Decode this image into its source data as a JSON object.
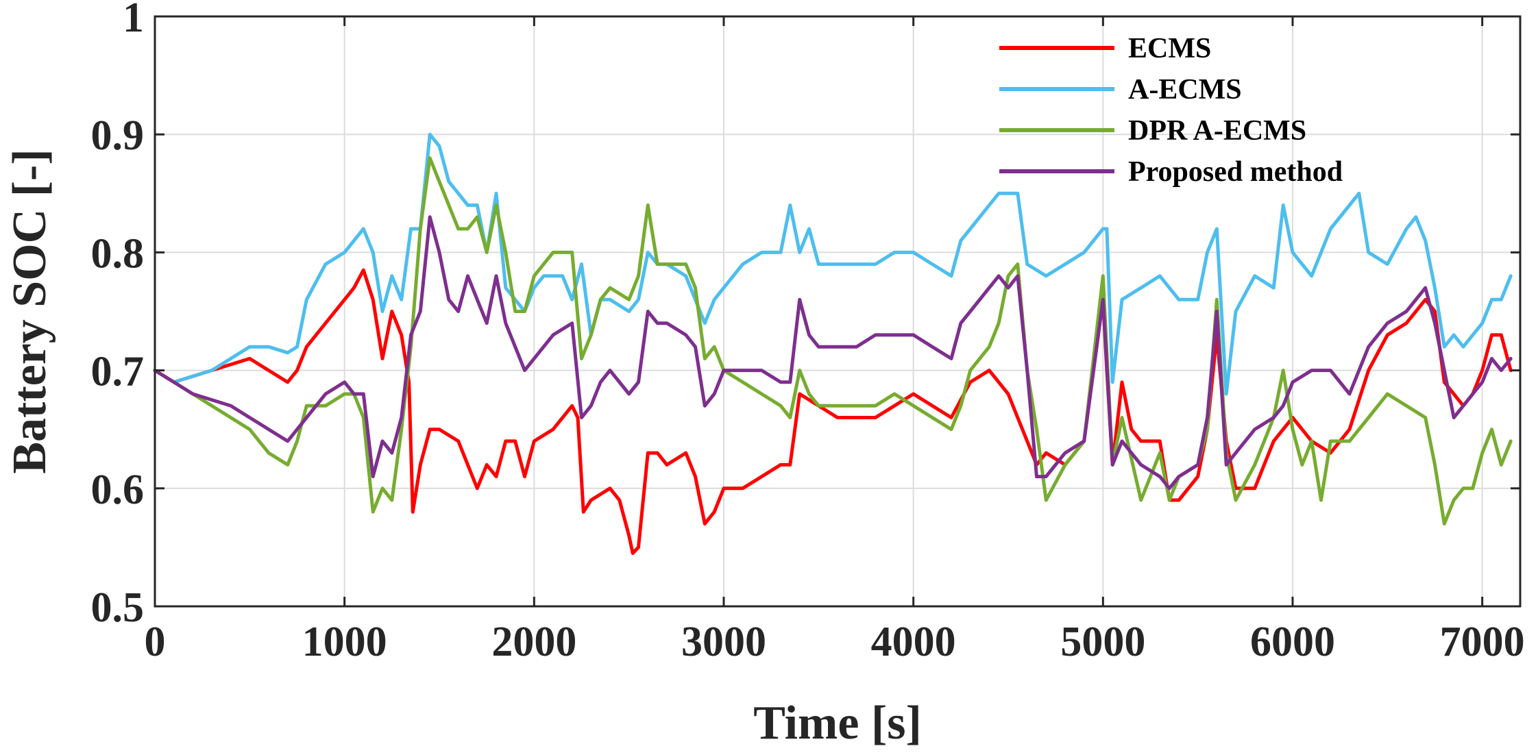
{
  "chart_data": {
    "type": "line",
    "title": "",
    "xlabel": "Time [s]",
    "ylabel": "Battery SOC [-]",
    "xlim": [
      0,
      7200
    ],
    "ylim": [
      0.5,
      1.0
    ],
    "xticks": [
      0,
      1000,
      2000,
      3000,
      4000,
      5000,
      6000,
      7000
    ],
    "xtick_labels": [
      "0",
      "1000",
      "2000",
      "3000",
      "4000",
      "5000",
      "6000",
      "7000"
    ],
    "yticks": [
      0.5,
      0.6,
      0.7,
      0.8,
      0.9,
      1.0
    ],
    "ytick_labels": [
      "0.5",
      "0.6",
      "0.7",
      "0.8",
      "0.9",
      "1"
    ],
    "grid": true,
    "legend_position": "top-right",
    "series": [
      {
        "name": "ECMS",
        "color": "#ff0000",
        "x": [
          0,
          100,
          300,
          500,
          600,
          700,
          750,
          800,
          900,
          1000,
          1050,
          1100,
          1150,
          1200,
          1250,
          1300,
          1340,
          1360,
          1400,
          1450,
          1500,
          1600,
          1650,
          1700,
          1750,
          1800,
          1850,
          1900,
          1950,
          2000,
          2100,
          2200,
          2230,
          2260,
          2300,
          2400,
          2450,
          2500,
          2520,
          2550,
          2600,
          2650,
          2700,
          2800,
          2850,
          2900,
          2950,
          3000,
          3100,
          3200,
          3300,
          3350,
          3400,
          3500,
          3600,
          3700,
          3800,
          3900,
          4000,
          4100,
          4200,
          4300,
          4400,
          4500,
          4550,
          4600,
          4650,
          4700,
          4800,
          4900,
          5000,
          5020,
          5050,
          5100,
          5150,
          5200,
          5300,
          5350,
          5400,
          5500,
          5550,
          5600,
          5650,
          5700,
          5800,
          5900,
          6000,
          6100,
          6200,
          6300,
          6400,
          6500,
          6600,
          6700,
          6750,
          6800,
          6900,
          6950,
          7000,
          7050,
          7100,
          7150
        ],
        "y": [
          0.7,
          0.69,
          0.7,
          0.71,
          0.7,
          0.69,
          0.7,
          0.72,
          0.74,
          0.76,
          0.77,
          0.785,
          0.76,
          0.71,
          0.75,
          0.73,
          0.69,
          0.58,
          0.62,
          0.65,
          0.65,
          0.64,
          0.62,
          0.6,
          0.62,
          0.61,
          0.64,
          0.64,
          0.61,
          0.64,
          0.65,
          0.67,
          0.66,
          0.58,
          0.59,
          0.6,
          0.59,
          0.56,
          0.545,
          0.55,
          0.63,
          0.63,
          0.62,
          0.63,
          0.61,
          0.57,
          0.58,
          0.6,
          0.6,
          0.61,
          0.62,
          0.62,
          0.68,
          0.67,
          0.66,
          0.66,
          0.66,
          0.67,
          0.68,
          0.67,
          0.66,
          0.69,
          0.7,
          0.68,
          0.66,
          0.64,
          0.62,
          0.63,
          0.62,
          0.64,
          0.76,
          0.7,
          0.62,
          0.69,
          0.65,
          0.64,
          0.64,
          0.59,
          0.59,
          0.61,
          0.65,
          0.73,
          0.64,
          0.6,
          0.6,
          0.64,
          0.66,
          0.64,
          0.63,
          0.65,
          0.7,
          0.73,
          0.74,
          0.76,
          0.75,
          0.69,
          0.67,
          0.68,
          0.7,
          0.73,
          0.73,
          0.7
        ]
      },
      {
        "name": "A-ECMS",
        "color": "#4dbeee",
        "x": [
          0,
          100,
          200,
          300,
          400,
          500,
          600,
          700,
          750,
          800,
          900,
          1000,
          1050,
          1100,
          1150,
          1200,
          1250,
          1300,
          1350,
          1400,
          1450,
          1500,
          1550,
          1600,
          1650,
          1700,
          1750,
          1800,
          1850,
          1900,
          1950,
          2000,
          2050,
          2100,
          2150,
          2200,
          2250,
          2300,
          2350,
          2400,
          2500,
          2550,
          2600,
          2650,
          2700,
          2800,
          2850,
          2900,
          2950,
          3000,
          3100,
          3200,
          3300,
          3350,
          3400,
          3450,
          3500,
          3600,
          3700,
          3800,
          3900,
          4000,
          4100,
          4200,
          4250,
          4300,
          4400,
          4450,
          4500,
          4550,
          4600,
          4700,
          4800,
          4900,
          5000,
          5020,
          5050,
          5100,
          5200,
          5300,
          5400,
          5500,
          5550,
          5600,
          5650,
          5700,
          5800,
          5900,
          5950,
          6000,
          6100,
          6200,
          6300,
          6350,
          6400,
          6500,
          6600,
          6650,
          6700,
          6750,
          6800,
          6850,
          6900,
          6950,
          7000,
          7050,
          7100,
          7150
        ],
        "y": [
          0.7,
          0.69,
          0.695,
          0.7,
          0.71,
          0.72,
          0.72,
          0.715,
          0.72,
          0.76,
          0.79,
          0.8,
          0.81,
          0.82,
          0.8,
          0.75,
          0.78,
          0.76,
          0.82,
          0.82,
          0.9,
          0.89,
          0.86,
          0.85,
          0.84,
          0.84,
          0.8,
          0.85,
          0.77,
          0.76,
          0.75,
          0.77,
          0.78,
          0.78,
          0.78,
          0.76,
          0.79,
          0.73,
          0.76,
          0.76,
          0.75,
          0.76,
          0.8,
          0.79,
          0.79,
          0.78,
          0.76,
          0.74,
          0.76,
          0.77,
          0.79,
          0.8,
          0.8,
          0.84,
          0.8,
          0.82,
          0.79,
          0.79,
          0.79,
          0.79,
          0.8,
          0.8,
          0.79,
          0.78,
          0.81,
          0.82,
          0.84,
          0.85,
          0.85,
          0.85,
          0.79,
          0.78,
          0.79,
          0.8,
          0.82,
          0.82,
          0.69,
          0.76,
          0.77,
          0.78,
          0.76,
          0.76,
          0.8,
          0.82,
          0.68,
          0.75,
          0.78,
          0.77,
          0.84,
          0.8,
          0.78,
          0.82,
          0.84,
          0.85,
          0.8,
          0.79,
          0.82,
          0.83,
          0.81,
          0.77,
          0.72,
          0.73,
          0.72,
          0.73,
          0.74,
          0.76,
          0.76,
          0.78
        ]
      },
      {
        "name": "DPR A-ECMS",
        "color": "#77ac30",
        "x": [
          0,
          100,
          200,
          300,
          400,
          500,
          600,
          700,
          750,
          800,
          900,
          1000,
          1050,
          1100,
          1150,
          1200,
          1250,
          1300,
          1350,
          1400,
          1450,
          1500,
          1550,
          1600,
          1650,
          1700,
          1750,
          1800,
          1850,
          1900,
          1950,
          2000,
          2100,
          2200,
          2250,
          2300,
          2350,
          2400,
          2500,
          2550,
          2600,
          2650,
          2700,
          2800,
          2850,
          2900,
          2950,
          3000,
          3100,
          3200,
          3300,
          3350,
          3400,
          3450,
          3500,
          3600,
          3700,
          3800,
          3900,
          4000,
          4100,
          4200,
          4250,
          4300,
          4400,
          4450,
          4500,
          4550,
          4600,
          4650,
          4700,
          4800,
          4900,
          5000,
          5050,
          5100,
          5200,
          5300,
          5350,
          5400,
          5500,
          5550,
          5600,
          5650,
          5700,
          5800,
          5900,
          5950,
          6000,
          6050,
          6100,
          6150,
          6200,
          6300,
          6400,
          6500,
          6600,
          6700,
          6750,
          6800,
          6850,
          6900,
          6950,
          7000,
          7050,
          7100,
          7150
        ],
        "y": [
          0.7,
          0.69,
          0.68,
          0.67,
          0.66,
          0.65,
          0.63,
          0.62,
          0.64,
          0.67,
          0.67,
          0.68,
          0.68,
          0.66,
          0.58,
          0.6,
          0.59,
          0.65,
          0.72,
          0.82,
          0.88,
          0.86,
          0.84,
          0.82,
          0.82,
          0.83,
          0.8,
          0.84,
          0.8,
          0.75,
          0.75,
          0.78,
          0.8,
          0.8,
          0.71,
          0.73,
          0.76,
          0.77,
          0.76,
          0.78,
          0.84,
          0.79,
          0.79,
          0.79,
          0.77,
          0.71,
          0.72,
          0.7,
          0.69,
          0.68,
          0.67,
          0.66,
          0.7,
          0.68,
          0.67,
          0.67,
          0.67,
          0.67,
          0.68,
          0.67,
          0.66,
          0.65,
          0.67,
          0.7,
          0.72,
          0.74,
          0.78,
          0.79,
          0.7,
          0.65,
          0.59,
          0.62,
          0.64,
          0.78,
          0.62,
          0.66,
          0.59,
          0.63,
          0.59,
          0.61,
          0.62,
          0.65,
          0.76,
          0.63,
          0.59,
          0.62,
          0.66,
          0.7,
          0.65,
          0.62,
          0.64,
          0.59,
          0.64,
          0.64,
          0.66,
          0.68,
          0.67,
          0.66,
          0.62,
          0.57,
          0.59,
          0.6,
          0.6,
          0.63,
          0.65,
          0.62,
          0.64
        ]
      },
      {
        "name": "Proposed method",
        "color": "#7e2f8e",
        "x": [
          0,
          100,
          200,
          300,
          400,
          500,
          600,
          700,
          750,
          800,
          900,
          1000,
          1050,
          1100,
          1150,
          1200,
          1250,
          1300,
          1350,
          1400,
          1450,
          1500,
          1550,
          1600,
          1650,
          1700,
          1750,
          1800,
          1850,
          1900,
          1950,
          2000,
          2100,
          2200,
          2250,
          2300,
          2350,
          2400,
          2500,
          2550,
          2600,
          2650,
          2700,
          2800,
          2850,
          2900,
          2950,
          3000,
          3100,
          3200,
          3300,
          3350,
          3400,
          3450,
          3500,
          3600,
          3700,
          3800,
          3900,
          4000,
          4100,
          4200,
          4250,
          4300,
          4400,
          4450,
          4500,
          4550,
          4600,
          4650,
          4700,
          4800,
          4900,
          5000,
          5050,
          5100,
          5200,
          5300,
          5350,
          5400,
          5500,
          5550,
          5600,
          5650,
          5700,
          5800,
          5900,
          5950,
          6000,
          6100,
          6200,
          6300,
          6400,
          6500,
          6600,
          6700,
          6750,
          6800,
          6850,
          6900,
          6950,
          7000,
          7050,
          7100,
          7150
        ],
        "y": [
          0.7,
          0.69,
          0.68,
          0.675,
          0.67,
          0.66,
          0.65,
          0.64,
          0.65,
          0.66,
          0.68,
          0.69,
          0.68,
          0.68,
          0.61,
          0.64,
          0.63,
          0.66,
          0.73,
          0.75,
          0.83,
          0.8,
          0.76,
          0.75,
          0.78,
          0.76,
          0.74,
          0.78,
          0.74,
          0.72,
          0.7,
          0.71,
          0.73,
          0.74,
          0.66,
          0.67,
          0.69,
          0.7,
          0.68,
          0.69,
          0.75,
          0.74,
          0.74,
          0.73,
          0.72,
          0.67,
          0.68,
          0.7,
          0.7,
          0.7,
          0.69,
          0.69,
          0.76,
          0.73,
          0.72,
          0.72,
          0.72,
          0.73,
          0.73,
          0.73,
          0.72,
          0.71,
          0.74,
          0.75,
          0.77,
          0.78,
          0.77,
          0.78,
          0.7,
          0.61,
          0.61,
          0.63,
          0.64,
          0.76,
          0.62,
          0.64,
          0.62,
          0.61,
          0.6,
          0.61,
          0.62,
          0.66,
          0.75,
          0.62,
          0.63,
          0.65,
          0.66,
          0.67,
          0.69,
          0.7,
          0.7,
          0.68,
          0.72,
          0.74,
          0.75,
          0.77,
          0.74,
          0.7,
          0.66,
          0.67,
          0.68,
          0.69,
          0.71,
          0.7,
          0.71
        ]
      }
    ]
  }
}
